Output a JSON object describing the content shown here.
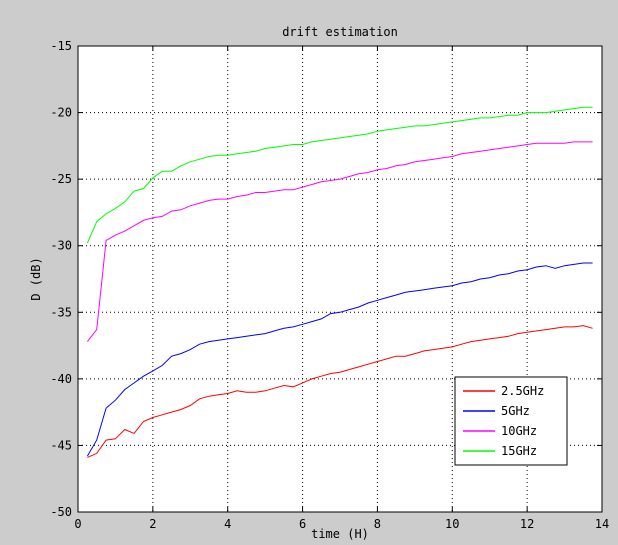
{
  "chart_data": {
    "type": "line",
    "title": "drift estimation",
    "xlabel": "time (H)",
    "ylabel": "D (dB)",
    "xlim": [
      0,
      14
    ],
    "ylim": [
      -50,
      -15
    ],
    "xticks": [
      0,
      2,
      4,
      6,
      8,
      10,
      12,
      14
    ],
    "yticks": [
      -50,
      -45,
      -40,
      -35,
      -30,
      -25,
      -20,
      -15
    ],
    "grid": true,
    "legend_position": "bottom-right",
    "series": [
      {
        "name": "2.5GHz",
        "color": "#ff0000",
        "x": [
          0.25,
          0.5,
          0.75,
          1.0,
          1.25,
          1.5,
          1.75,
          2.0,
          2.25,
          2.5,
          2.75,
          3.0,
          3.25,
          3.5,
          3.75,
          4.0,
          4.25,
          4.5,
          4.75,
          5.0,
          5.25,
          5.5,
          5.75,
          6.0,
          6.25,
          6.5,
          6.75,
          7.0,
          7.25,
          7.5,
          7.75,
          8.0,
          8.25,
          8.5,
          8.75,
          9.0,
          9.25,
          9.5,
          9.75,
          10.0,
          10.25,
          10.5,
          10.75,
          11.0,
          11.25,
          11.5,
          11.75,
          12.0,
          12.25,
          12.5,
          12.75,
          13.0,
          13.25,
          13.5,
          13.75
        ],
        "y": [
          -45.9,
          -45.6,
          -44.6,
          -44.5,
          -43.8,
          -44.1,
          -43.2,
          -42.9,
          -42.7,
          -42.5,
          -42.3,
          -42.0,
          -41.5,
          -41.3,
          -41.2,
          -41.1,
          -40.9,
          -41.0,
          -41.0,
          -40.9,
          -40.7,
          -40.5,
          -40.6,
          -40.3,
          -40.0,
          -39.8,
          -39.6,
          -39.5,
          -39.3,
          -39.1,
          -38.9,
          -38.7,
          -38.5,
          -38.3,
          -38.3,
          -38.1,
          -37.9,
          -37.8,
          -37.7,
          -37.6,
          -37.4,
          -37.2,
          -37.1,
          -37.0,
          -36.9,
          -36.8,
          -36.6,
          -36.5,
          -36.4,
          -36.3,
          -36.2,
          -36.1,
          -36.1,
          -36.0,
          -36.2
        ]
      },
      {
        "name": "5GHz",
        "color": "#0000ff",
        "x": [
          0.25,
          0.5,
          0.75,
          1.0,
          1.25,
          1.5,
          1.75,
          2.0,
          2.25,
          2.5,
          2.75,
          3.0,
          3.25,
          3.5,
          3.75,
          4.0,
          4.25,
          4.5,
          4.75,
          5.0,
          5.25,
          5.5,
          5.75,
          6.0,
          6.25,
          6.5,
          6.75,
          7.0,
          7.25,
          7.5,
          7.75,
          8.0,
          8.25,
          8.5,
          8.75,
          9.0,
          9.25,
          9.5,
          9.75,
          10.0,
          10.25,
          10.5,
          10.75,
          11.0,
          11.25,
          11.5,
          11.75,
          12.0,
          12.25,
          12.5,
          12.75,
          13.0,
          13.25,
          13.5,
          13.75
        ],
        "y": [
          -45.8,
          -44.6,
          -42.2,
          -41.6,
          -40.8,
          -40.3,
          -39.8,
          -39.4,
          -39.0,
          -38.3,
          -38.1,
          -37.8,
          -37.4,
          -37.2,
          -37.1,
          -37.0,
          -36.9,
          -36.8,
          -36.7,
          -36.6,
          -36.4,
          -36.2,
          -36.1,
          -35.9,
          -35.7,
          -35.5,
          -35.1,
          -35.0,
          -34.8,
          -34.6,
          -34.3,
          -34.1,
          -33.9,
          -33.7,
          -33.5,
          -33.4,
          -33.3,
          -33.2,
          -33.1,
          -33.0,
          -32.8,
          -32.7,
          -32.5,
          -32.4,
          -32.2,
          -32.1,
          -31.9,
          -31.8,
          -31.6,
          -31.5,
          -31.7,
          -31.5,
          -31.4,
          -31.3,
          -31.3
        ]
      },
      {
        "name": "10GHz",
        "color": "#ff00ff",
        "x": [
          0.25,
          0.5,
          0.75,
          1.0,
          1.25,
          1.5,
          1.75,
          2.0,
          2.25,
          2.5,
          2.75,
          3.0,
          3.25,
          3.5,
          3.75,
          4.0,
          4.25,
          4.5,
          4.75,
          5.0,
          5.25,
          5.5,
          5.75,
          6.0,
          6.25,
          6.5,
          6.75,
          7.0,
          7.25,
          7.5,
          7.75,
          8.0,
          8.25,
          8.5,
          8.75,
          9.0,
          9.25,
          9.5,
          9.75,
          10.0,
          10.25,
          10.5,
          10.75,
          11.0,
          11.25,
          11.5,
          11.75,
          12.0,
          12.25,
          12.5,
          12.75,
          13.0,
          13.25,
          13.5,
          13.75
        ],
        "y": [
          -37.2,
          -36.3,
          -29.6,
          -29.2,
          -28.9,
          -28.5,
          -28.1,
          -27.9,
          -27.8,
          -27.4,
          -27.3,
          -27.0,
          -26.8,
          -26.6,
          -26.5,
          -26.5,
          -26.3,
          -26.2,
          -26.0,
          -26.0,
          -25.9,
          -25.8,
          -25.8,
          -25.6,
          -25.4,
          -25.2,
          -25.1,
          -25.0,
          -24.8,
          -24.6,
          -24.5,
          -24.3,
          -24.2,
          -24.0,
          -23.9,
          -23.7,
          -23.6,
          -23.5,
          -23.4,
          -23.3,
          -23.1,
          -23.0,
          -22.9,
          -22.8,
          -22.7,
          -22.6,
          -22.5,
          -22.4,
          -22.3,
          -22.3,
          -22.3,
          -22.3,
          -22.2,
          -22.2,
          -22.2
        ]
      },
      {
        "name": "15GHz",
        "color": "#00ff00",
        "x": [
          0.25,
          0.5,
          0.75,
          1.0,
          1.25,
          1.5,
          1.75,
          2.0,
          2.25,
          2.5,
          2.75,
          3.0,
          3.25,
          3.5,
          3.75,
          4.0,
          4.25,
          4.5,
          4.75,
          5.0,
          5.25,
          5.5,
          5.75,
          6.0,
          6.25,
          6.5,
          6.75,
          7.0,
          7.25,
          7.5,
          7.75,
          8.0,
          8.25,
          8.5,
          8.75,
          9.0,
          9.25,
          9.5,
          9.75,
          10.0,
          10.25,
          10.5,
          10.75,
          11.0,
          11.25,
          11.5,
          11.75,
          12.0,
          12.25,
          12.5,
          12.75,
          13.0,
          13.25,
          13.5,
          13.75
        ],
        "y": [
          -29.8,
          -28.2,
          -27.6,
          -27.2,
          -26.7,
          -25.9,
          -25.7,
          -24.9,
          -24.4,
          -24.4,
          -24.0,
          -23.7,
          -23.5,
          -23.3,
          -23.2,
          -23.2,
          -23.1,
          -23.0,
          -22.9,
          -22.7,
          -22.6,
          -22.5,
          -22.4,
          -22.4,
          -22.2,
          -22.1,
          -22.0,
          -21.9,
          -21.8,
          -21.7,
          -21.6,
          -21.4,
          -21.3,
          -21.2,
          -21.1,
          -21.0,
          -21.0,
          -20.9,
          -20.8,
          -20.7,
          -20.6,
          -20.5,
          -20.4,
          -20.4,
          -20.3,
          -20.2,
          -20.2,
          -20.0,
          -20.0,
          -20.0,
          -19.9,
          -19.8,
          -19.7,
          -19.6,
          -19.6
        ]
      }
    ]
  }
}
